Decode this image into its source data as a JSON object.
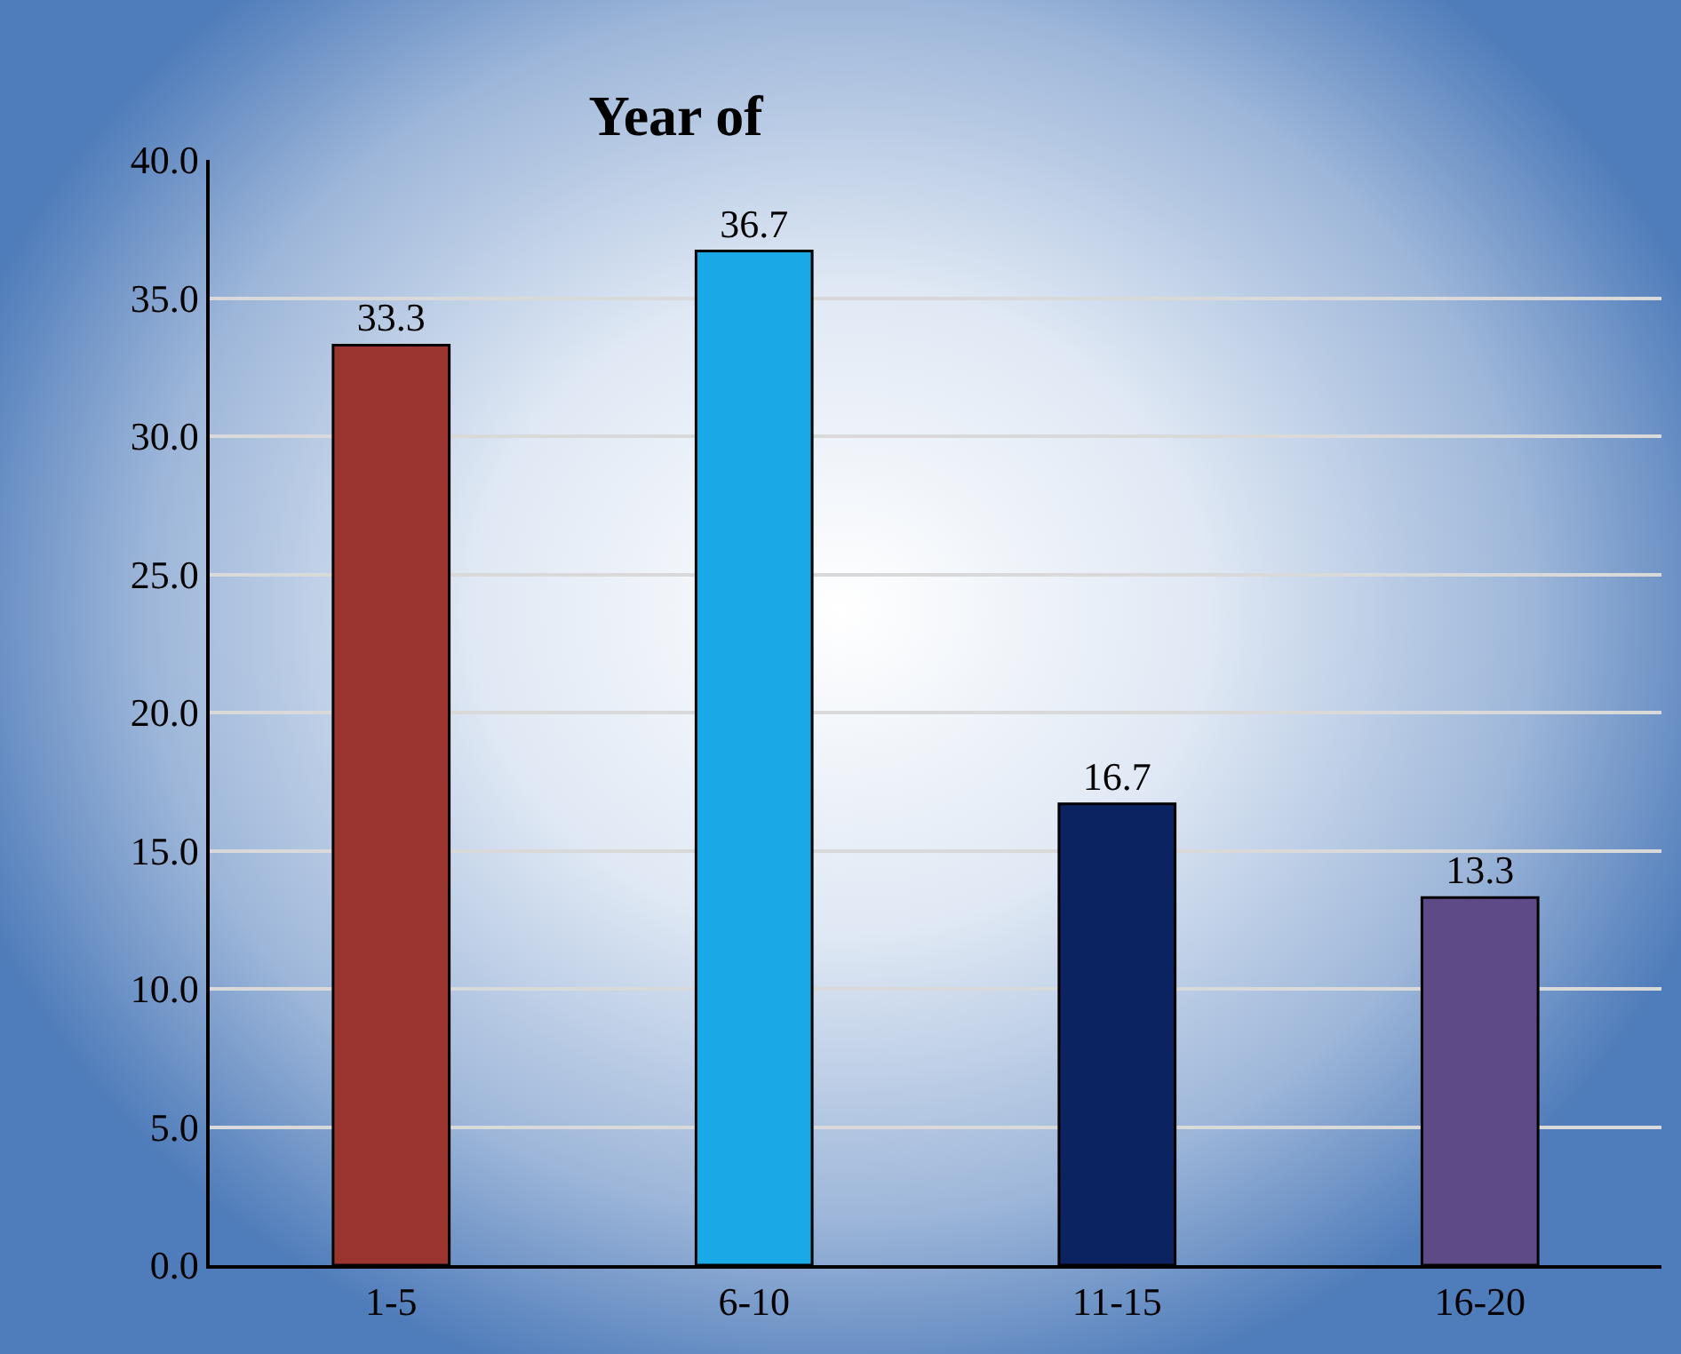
{
  "chart_data": {
    "type": "bar",
    "title": "Year of",
    "categories": [
      "1-5",
      "6-10",
      "11-15",
      "16-20"
    ],
    "values": [
      33.3,
      36.7,
      16.7,
      13.3
    ],
    "colors": [
      "#9b3530",
      "#1ba8e6",
      "#0b2461",
      "#5e4a86"
    ],
    "ylim": [
      0,
      40
    ],
    "yticks": [
      {
        "value": 0,
        "label": "0.0"
      },
      {
        "value": 5,
        "label": "5.0"
      },
      {
        "value": 10,
        "label": "10.0"
      },
      {
        "value": 15,
        "label": "15.0"
      },
      {
        "value": 20,
        "label": "20.0"
      },
      {
        "value": 25,
        "label": "25.0"
      },
      {
        "value": 30,
        "label": "30.0"
      },
      {
        "value": 35,
        "label": "35.0"
      },
      {
        "value": 40,
        "label": "40.0"
      }
    ],
    "grid": "y",
    "data_labels": true,
    "legend": false
  }
}
